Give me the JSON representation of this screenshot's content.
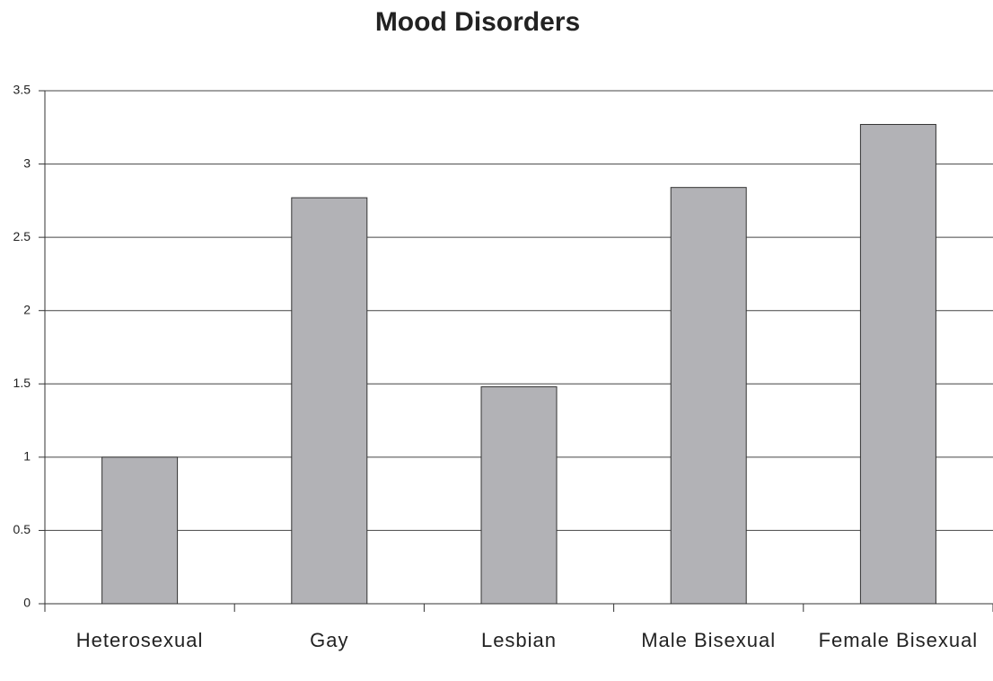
{
  "chart_data": {
    "type": "bar",
    "title": "Mood Disorders",
    "categories": [
      "Heterosexual",
      "Gay",
      "Lesbian",
      "Male Bisexual",
      "Female Bisexual"
    ],
    "values": [
      1,
      2.77,
      1.48,
      2.84,
      3.27
    ],
    "color": "#b2b2b6",
    "ylim": [
      0,
      3.5
    ],
    "yticks": [
      0,
      0.5,
      1,
      1.5,
      2,
      2.5,
      3,
      3.5
    ],
    "grid": true
  }
}
